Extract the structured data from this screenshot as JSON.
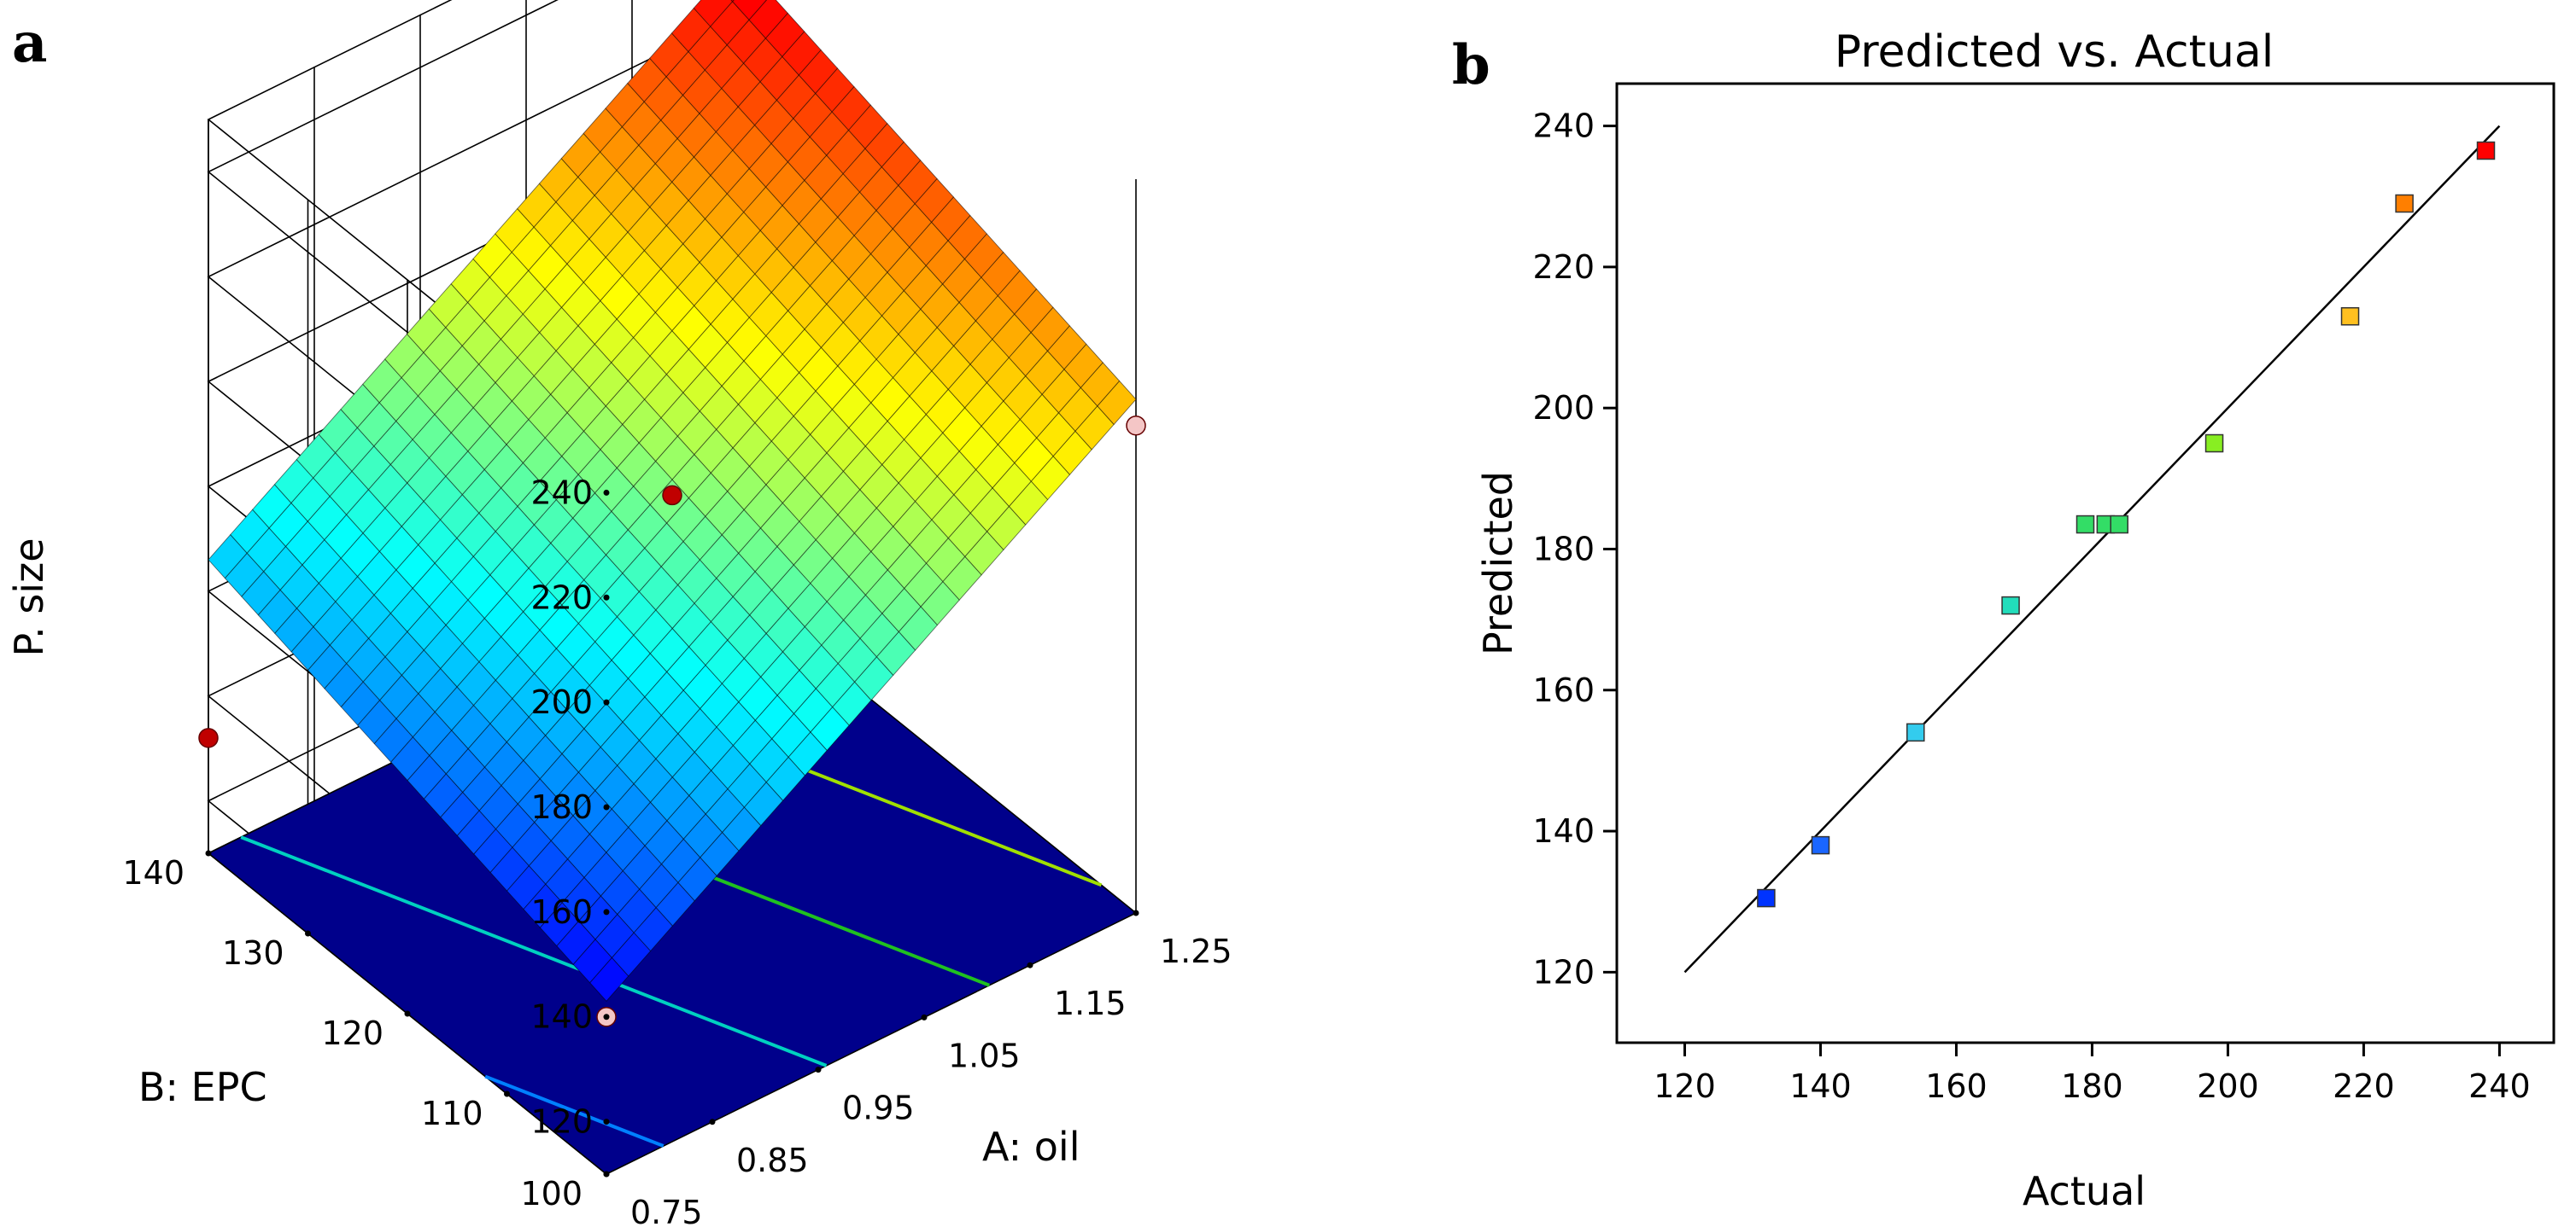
{
  "panel_a_label": "a",
  "panel_b_label": "b",
  "chart_data": [
    {
      "type": "surface3d",
      "title": "",
      "zlabel": "P. size",
      "xlabel": "A: oil",
      "ylabel": "B: EPC",
      "x_ticks": [
        "0.75",
        "0.85",
        "0.95",
        "1.05",
        "1.15",
        "1.25"
      ],
      "y_ticks": [
        "100",
        "110",
        "120",
        "130",
        "140"
      ],
      "z_ticks": [
        "120",
        "140",
        "160",
        "180",
        "200",
        "220",
        "240"
      ],
      "xlim": [
        0.75,
        1.25
      ],
      "ylim": [
        100,
        140
      ],
      "zlim": [
        110,
        250
      ],
      "surface_corners": {
        "oil_0.75_epc_100": 143,
        "oil_1.25_epc_100": 208,
        "oil_0.75_epc_140": 166,
        "oil_1.25_epc_140": 231
      },
      "design_points": [
        {
          "oil": 0.75,
          "epc": 140,
          "size": 132,
          "color": "#c00000"
        },
        {
          "oil": 1.25,
          "epc": 140,
          "size": 238,
          "color": "#c00000"
        },
        {
          "oil": 1.0,
          "epc": 120,
          "size": 184,
          "color": "#c00000"
        },
        {
          "oil": 0.75,
          "epc": 100,
          "size": 140,
          "color": "#f4c6c6"
        },
        {
          "oil": 1.25,
          "epc": 100,
          "size": 203,
          "color": "#f4c6c6"
        }
      ],
      "base_color": "#00008b",
      "contour_colors": [
        "#0080ff",
        "#00d0c0",
        "#20c020",
        "#a0e000",
        "#f0e000"
      ]
    },
    {
      "type": "scatter",
      "title": "Predicted vs. Actual",
      "xlabel": "Actual",
      "ylabel": "Predicted",
      "xlim": [
        110,
        248
      ],
      "ylim": [
        110,
        246
      ],
      "x_ticks": [
        120,
        140,
        160,
        180,
        200,
        220,
        240
      ],
      "y_ticks": [
        120,
        140,
        160,
        180,
        200,
        220,
        240
      ],
      "reference_line": {
        "from": [
          120,
          120
        ],
        "to": [
          240,
          240
        ]
      },
      "points": [
        {
          "x": 132,
          "y": 130.5,
          "color": "#0033ff"
        },
        {
          "x": 140,
          "y": 138,
          "color": "#1a66ff"
        },
        {
          "x": 154,
          "y": 154,
          "color": "#33ccee"
        },
        {
          "x": 168,
          "y": 172,
          "color": "#22ddbb"
        },
        {
          "x": 179,
          "y": 183.5,
          "color": "#33dd66"
        },
        {
          "x": 182,
          "y": 183.5,
          "color": "#33dd66"
        },
        {
          "x": 184,
          "y": 183.5,
          "color": "#33dd66"
        },
        {
          "x": 198,
          "y": 195,
          "color": "#88ee22"
        },
        {
          "x": 218,
          "y": 213,
          "color": "#ffc020"
        },
        {
          "x": 226,
          "y": 229,
          "color": "#ff7f00"
        },
        {
          "x": 238,
          "y": 236.5,
          "color": "#ff0000"
        }
      ]
    }
  ]
}
